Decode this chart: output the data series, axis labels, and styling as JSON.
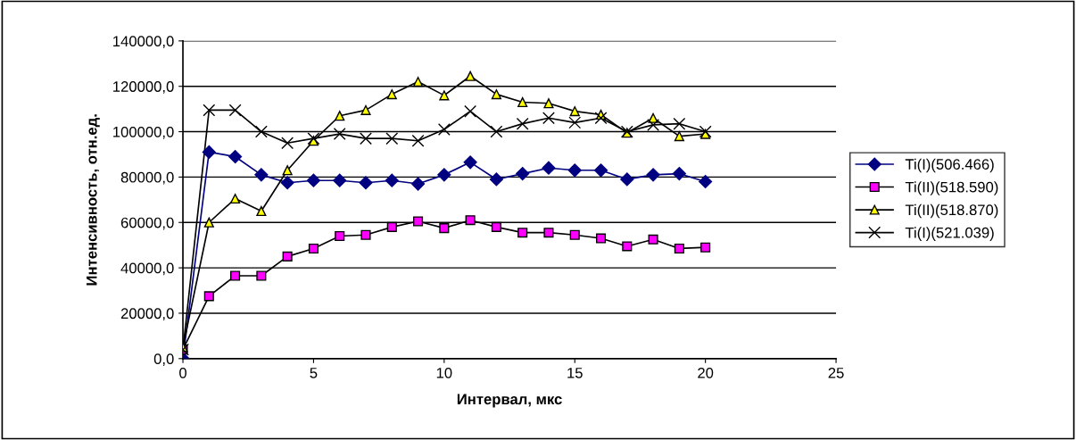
{
  "chart_data": {
    "type": "line",
    "xlabel": "Интервал, мкс",
    "ylabel": "Интенсивность, отн.ед.",
    "x": [
      0,
      1,
      2,
      3,
      4,
      5,
      6,
      7,
      8,
      9,
      10,
      11,
      12,
      13,
      14,
      15,
      16,
      17,
      18,
      19,
      20
    ],
    "xlim": [
      0,
      25
    ],
    "xticks": [
      0,
      5,
      10,
      15,
      20,
      25
    ],
    "ylim": [
      0,
      140000
    ],
    "yticks": [
      {
        "value": 0,
        "label": "0,0"
      },
      {
        "value": 20000,
        "label": "20000,0"
      },
      {
        "value": 40000,
        "label": "40000,0"
      },
      {
        "value": 60000,
        "label": "60000,0"
      },
      {
        "value": 80000,
        "label": "80000,0"
      },
      {
        "value": 100000,
        "label": "100000,0"
      },
      {
        "value": 120000,
        "label": "120000,0"
      },
      {
        "value": 140000,
        "label": "140000,0"
      }
    ],
    "grid": "y",
    "legend": "right",
    "series": [
      {
        "name": "Ti(I)(506.466)",
        "color": "#000080",
        "marker": "diamond",
        "values": [
          0,
          91000,
          89000,
          81000,
          77500,
          78500,
          78500,
          77500,
          78500,
          77000,
          81000,
          86500,
          79000,
          81500,
          84000,
          83000,
          83000,
          79000,
          81000,
          81500,
          78000
        ]
      },
      {
        "name": "Ti(II)(518.590)",
        "color": "#ff00ff",
        "marker": "square",
        "values": [
          4000,
          27500,
          36500,
          36500,
          45000,
          48500,
          54000,
          54500,
          58000,
          60500,
          57500,
          61000,
          58000,
          55500,
          55500,
          54500,
          53000,
          49500,
          52500,
          48500,
          49000
        ]
      },
      {
        "name": "Ti(II)(518.870)",
        "color": "#ffff00",
        "marker": "triangle",
        "values": [
          5000,
          60000,
          70500,
          65000,
          83000,
          96000,
          107000,
          109500,
          116500,
          122000,
          116000,
          124500,
          116500,
          113000,
          112500,
          109000,
          107500,
          99500,
          106000,
          98000,
          99000
        ]
      },
      {
        "name": "Ti(I)(521.039)",
        "color": "#000000",
        "marker": "cross",
        "values": [
          4000,
          109500,
          109500,
          100000,
          95000,
          97000,
          99000,
          97000,
          97000,
          96000,
          101000,
          109000,
          100000,
          103500,
          106000,
          104000,
          106000,
          100000,
          103000,
          103500,
          100000
        ]
      }
    ]
  }
}
